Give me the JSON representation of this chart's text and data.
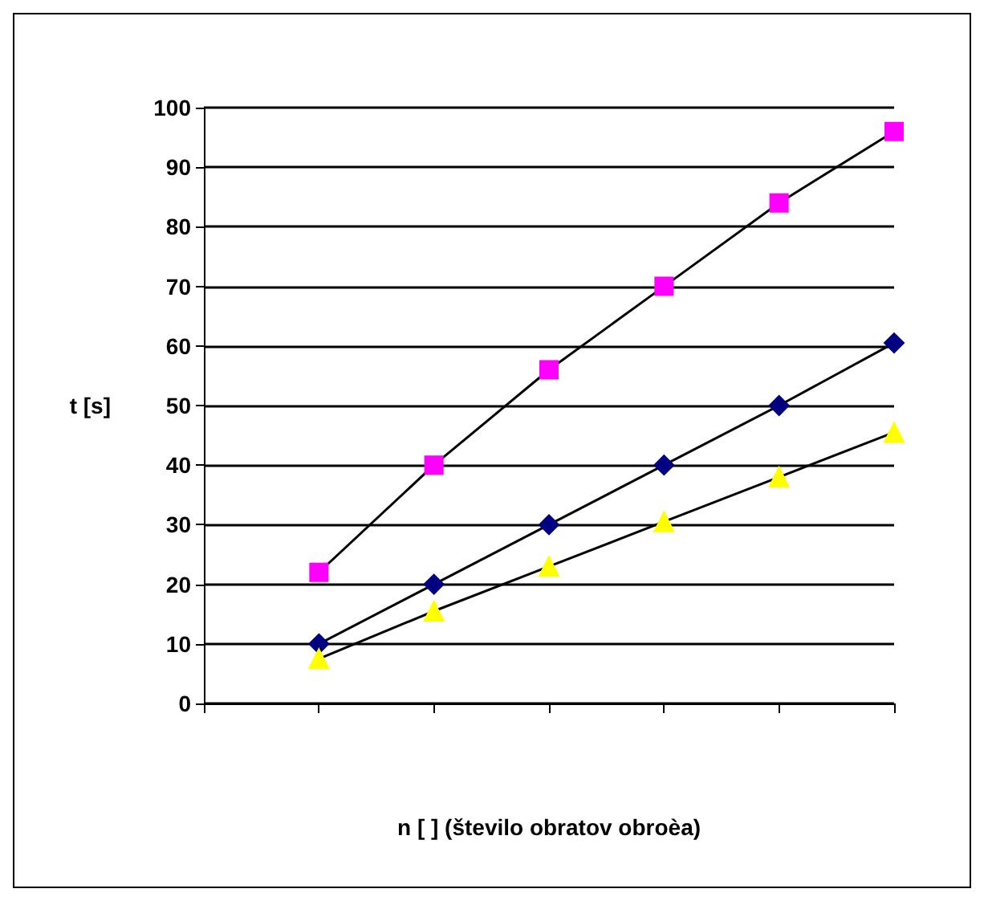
{
  "chart_data": {
    "type": "line",
    "xlabel": "n [ ] (število obratov obroèa)",
    "ylabel": "t [s]",
    "categories": [
      null,
      null,
      null,
      null,
      null,
      null,
      null
    ],
    "series": [
      {
        "color": "#000080",
        "marker": "diamond",
        "values": [
          null,
          10,
          20,
          30,
          40,
          50,
          60.5
        ]
      },
      {
        "color": "#ff00ff",
        "marker": "square",
        "values": [
          null,
          22,
          40,
          56,
          70,
          84,
          96
        ]
      },
      {
        "color": "#ffff00",
        "marker": "triangle",
        "values": [
          null,
          7.5,
          15.5,
          23,
          30.5,
          38,
          45.5
        ]
      }
    ],
    "ylim": [
      0,
      100
    ],
    "yticks": [
      0,
      10,
      20,
      30,
      40,
      50,
      60,
      70,
      80,
      90,
      100
    ],
    "grid": "y",
    "tick_labels": "y"
  }
}
